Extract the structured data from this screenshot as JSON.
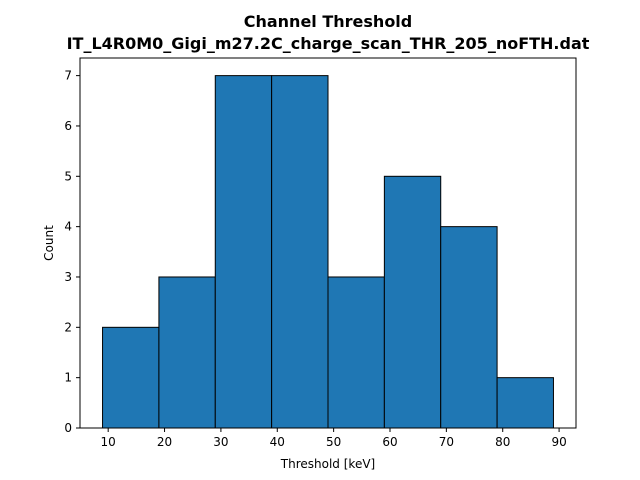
{
  "chart_data": {
    "type": "bar",
    "title": "Channel Threshold",
    "subtitle": "IT_L4R0M0_Gigi_m27.2C_charge_scan_THR_205_noFTH.dat",
    "xlabel": "Threshold [keV]",
    "ylabel": "Count",
    "bins": [
      {
        "start": 9,
        "end": 19,
        "value": 2
      },
      {
        "start": 19,
        "end": 29,
        "value": 3
      },
      {
        "start": 29,
        "end": 39,
        "value": 7
      },
      {
        "start": 39,
        "end": 49,
        "value": 7
      },
      {
        "start": 49,
        "end": 59,
        "value": 3
      },
      {
        "start": 59,
        "end": 69,
        "value": 5
      },
      {
        "start": 69,
        "end": 79,
        "value": 4
      },
      {
        "start": 79,
        "end": 89,
        "value": 1
      }
    ],
    "xlim": [
      5,
      93
    ],
    "ylim": [
      0,
      7.35
    ],
    "xticks": [
      10,
      20,
      30,
      40,
      50,
      60,
      70,
      80,
      90
    ],
    "yticks": [
      0,
      1,
      2,
      3,
      4,
      5,
      6,
      7
    ],
    "bar_color": "#1f77b4",
    "edge_color": "#000000",
    "grid": false,
    "legend": "none"
  }
}
